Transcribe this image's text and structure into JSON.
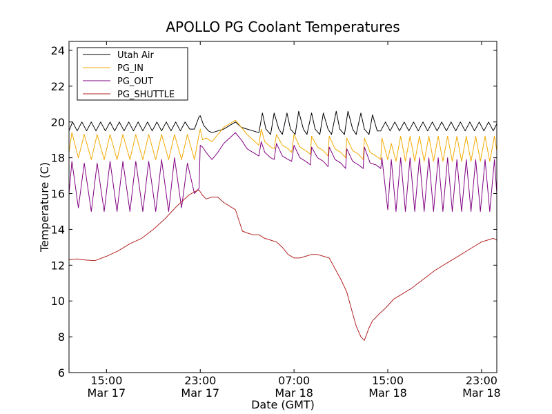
{
  "chart_data": {
    "type": "line",
    "title": "APOLLO PG Coolant Temperatures",
    "xlabel": "Date (GMT)",
    "ylabel": "Temperature (C)",
    "ylim": [
      6,
      24.5
    ],
    "xlim_hours": [
      11.8,
      48.3
    ],
    "x_unit": "hours since 2013-03-17 00:00 GMT",
    "yticks": [
      6,
      8,
      10,
      12,
      14,
      16,
      18,
      20,
      22,
      24
    ],
    "xticks": [
      {
        "hour": 15,
        "line1": "15:00",
        "line2": "Mar 17"
      },
      {
        "hour": 23,
        "line1": "23:00",
        "line2": "Mar 17"
      },
      {
        "hour": 31,
        "line1": "07:00",
        "line2": "Mar 18"
      },
      {
        "hour": 39,
        "line1": "15:00",
        "line2": "Mar 18"
      },
      {
        "hour": 47,
        "line1": "23:00",
        "line2": "Mar 18"
      }
    ],
    "legend_position": "top-left",
    "series": [
      {
        "name": "Utah Air",
        "color": "#000000",
        "x": [
          11.8,
          12.1,
          12.5,
          12.9,
          13.3,
          13.7,
          14.1,
          14.5,
          14.9,
          15.3,
          15.7,
          16.1,
          16.5,
          16.9,
          17.3,
          17.7,
          18.1,
          18.5,
          18.9,
          19.3,
          19.7,
          20.1,
          20.5,
          20.9,
          21.3,
          21.7,
          22.1,
          22.5,
          22.9,
          23.0,
          23.3,
          23.7,
          24.0,
          24.5,
          25.0,
          25.5,
          26.0,
          26.5,
          27.0,
          27.5,
          28.0,
          28.3,
          28.6,
          29.0,
          29.3,
          29.7,
          30.0,
          30.4,
          30.7,
          31.1,
          31.4,
          31.8,
          32.1,
          32.5,
          32.8,
          33.2,
          33.5,
          33.9,
          34.2,
          34.6,
          34.9,
          35.3,
          35.6,
          36.0,
          36.3,
          36.7,
          37.0,
          37.4,
          37.7,
          38.1,
          38.4,
          38.8,
          39.2,
          39.6,
          40.0,
          40.4,
          40.8,
          41.2,
          41.6,
          42.0,
          42.4,
          42.8,
          43.2,
          43.6,
          44.0,
          44.4,
          44.8,
          45.2,
          45.6,
          46.0,
          46.4,
          46.8,
          47.2,
          47.6,
          48.0,
          48.3
        ],
        "y": [
          19.5,
          20.0,
          19.5,
          20.0,
          19.5,
          20.0,
          19.5,
          20.0,
          19.5,
          20.0,
          19.5,
          20.0,
          19.5,
          20.0,
          19.5,
          20.0,
          19.5,
          20.0,
          19.5,
          20.0,
          19.5,
          20.0,
          19.5,
          20.0,
          19.5,
          20.0,
          19.6,
          19.6,
          20.3,
          20.35,
          19.8,
          19.5,
          19.4,
          19.5,
          19.6,
          19.8,
          20.0,
          19.7,
          19.6,
          19.5,
          19.4,
          20.5,
          19.6,
          19.3,
          20.5,
          19.6,
          19.3,
          20.5,
          19.6,
          19.3,
          20.6,
          19.6,
          19.3,
          20.5,
          19.6,
          19.3,
          20.5,
          19.6,
          19.3,
          20.6,
          19.6,
          19.3,
          20.6,
          19.6,
          19.3,
          20.5,
          19.6,
          19.3,
          20.4,
          19.5,
          19.5,
          20.0,
          19.5,
          20.0,
          19.5,
          20.0,
          19.5,
          20.0,
          19.5,
          20.0,
          19.5,
          20.0,
          19.5,
          20.0,
          19.5,
          20.0,
          19.5,
          20.0,
          19.5,
          20.0,
          19.5,
          20.0,
          19.5,
          20.0,
          19.5,
          19.9
        ]
      },
      {
        "name": "PG_IN",
        "color": "#f2a900",
        "x": [
          11.8,
          12.05,
          12.6,
          13.1,
          13.7,
          14.2,
          14.8,
          15.3,
          15.9,
          16.4,
          17.0,
          17.5,
          18.1,
          18.6,
          19.2,
          19.7,
          20.3,
          20.8,
          21.4,
          21.9,
          22.5,
          22.9,
          23.0,
          23.2,
          23.5,
          24.0,
          24.5,
          25.0,
          25.5,
          26.0,
          26.5,
          27.0,
          27.5,
          28.0,
          28.2,
          28.5,
          29.0,
          29.3,
          29.5,
          30.0,
          30.5,
          30.8,
          31.0,
          31.5,
          32.0,
          32.4,
          32.5,
          33.0,
          33.5,
          33.9,
          34.0,
          34.5,
          35.0,
          35.4,
          35.5,
          36.0,
          36.5,
          36.9,
          37.0,
          37.5,
          38.0,
          38.4,
          38.5,
          39.0,
          39.3,
          39.7,
          40.1,
          40.5,
          40.9,
          41.3,
          41.7,
          42.1,
          42.5,
          42.9,
          43.3,
          43.7,
          44.1,
          44.5,
          44.9,
          45.3,
          45.7,
          46.1,
          46.5,
          46.9,
          47.3,
          47.7,
          48.1,
          48.3
        ],
        "y": [
          18.3,
          19.4,
          18.0,
          19.3,
          17.9,
          19.3,
          17.9,
          19.3,
          17.9,
          19.3,
          17.9,
          19.3,
          17.9,
          19.3,
          17.9,
          19.3,
          17.9,
          19.3,
          17.9,
          19.3,
          17.9,
          19.3,
          19.6,
          19.0,
          19.1,
          18.9,
          19.3,
          19.7,
          19.9,
          20.1,
          19.7,
          19.3,
          19.0,
          18.7,
          19.6,
          18.9,
          18.6,
          18.5,
          19.3,
          18.7,
          18.5,
          18.3,
          19.3,
          18.6,
          18.4,
          18.2,
          19.2,
          18.6,
          18.4,
          18.1,
          19.2,
          18.5,
          18.3,
          18.0,
          19.1,
          18.4,
          18.2,
          17.9,
          19.1,
          18.3,
          18.1,
          17.9,
          19.1,
          17.9,
          18.8,
          17.8,
          19.2,
          17.8,
          19.2,
          17.8,
          19.2,
          17.8,
          19.2,
          17.8,
          19.2,
          17.8,
          19.2,
          17.8,
          19.2,
          17.8,
          19.2,
          17.8,
          19.2,
          17.8,
          19.2,
          17.8,
          19.2,
          18.4
        ]
      },
      {
        "name": "PG_OUT",
        "color": "#800080",
        "x": [
          11.8,
          12.05,
          12.6,
          13.1,
          13.7,
          14.2,
          14.8,
          15.3,
          15.9,
          16.4,
          17.0,
          17.5,
          18.1,
          18.6,
          19.2,
          19.7,
          20.3,
          20.8,
          21.4,
          21.9,
          22.5,
          22.9,
          23.0,
          23.2,
          23.5,
          24.0,
          24.5,
          25.0,
          25.5,
          26.0,
          26.5,
          27.0,
          27.5,
          28.0,
          28.2,
          28.5,
          29.0,
          29.3,
          29.5,
          30.0,
          30.5,
          30.8,
          31.0,
          31.5,
          32.0,
          32.4,
          32.5,
          33.0,
          33.5,
          33.9,
          34.0,
          34.5,
          35.0,
          35.4,
          35.5,
          36.0,
          36.5,
          36.9,
          37.0,
          37.5,
          38.0,
          38.4,
          38.5,
          39.0,
          39.3,
          39.7,
          40.1,
          40.5,
          40.9,
          41.3,
          41.7,
          42.1,
          42.5,
          42.9,
          43.3,
          43.7,
          44.1,
          44.5,
          44.9,
          45.3,
          45.7,
          46.1,
          46.5,
          46.9,
          47.3,
          47.7,
          48.1,
          48.3
        ],
        "y": [
          16.0,
          17.8,
          15.2,
          17.7,
          15.0,
          17.7,
          15.0,
          17.8,
          15.0,
          17.8,
          15.0,
          17.8,
          15.0,
          17.8,
          15.0,
          17.9,
          15.0,
          18.0,
          15.2,
          17.7,
          16.0,
          16.3,
          18.7,
          18.6,
          18.3,
          17.9,
          18.3,
          18.8,
          19.1,
          19.4,
          19.0,
          18.5,
          18.3,
          18.1,
          18.9,
          18.3,
          18.0,
          17.9,
          18.8,
          18.1,
          17.9,
          17.8,
          18.7,
          18.0,
          17.8,
          17.6,
          18.6,
          18.0,
          17.8,
          17.5,
          18.6,
          17.9,
          17.7,
          17.4,
          18.5,
          17.8,
          17.6,
          17.4,
          18.6,
          17.7,
          17.6,
          17.4,
          18.0,
          15.1,
          17.9,
          15.0,
          18.0,
          15.0,
          18.0,
          15.0,
          18.0,
          15.0,
          18.0,
          15.0,
          18.0,
          15.0,
          18.0,
          15.0,
          17.9,
          15.0,
          17.9,
          15.0,
          17.9,
          15.0,
          17.9,
          15.0,
          17.9,
          16.0
        ]
      },
      {
        "name": "PG_SHUTTLE",
        "color": "#b22222",
        "x": [
          11.8,
          12.5,
          13.0,
          14.0,
          15.0,
          16.0,
          17.0,
          18.0,
          19.0,
          20.0,
          21.0,
          22.0,
          22.5,
          22.9,
          23.2,
          23.5,
          24.0,
          24.5,
          25.0,
          25.5,
          26.0,
          26.3,
          26.6,
          27.0,
          27.5,
          28.0,
          28.5,
          29.0,
          29.5,
          30.0,
          30.5,
          31.0,
          31.5,
          32.0,
          32.5,
          33.0,
          33.5,
          34.0,
          34.5,
          35.0,
          35.5,
          36.0,
          36.3,
          36.7,
          37.0,
          37.4,
          37.7,
          38.0,
          38.3,
          38.8,
          39.5,
          40.0,
          41.0,
          42.0,
          43.0,
          44.0,
          45.0,
          46.0,
          47.0,
          48.0,
          48.3
        ],
        "y": [
          12.3,
          12.35,
          12.3,
          12.25,
          12.5,
          12.8,
          13.2,
          13.5,
          14.0,
          14.6,
          15.3,
          15.9,
          16.1,
          16.2,
          15.9,
          15.7,
          15.8,
          15.8,
          15.5,
          15.3,
          15.1,
          14.5,
          13.9,
          13.8,
          13.7,
          13.7,
          13.5,
          13.4,
          13.3,
          13.0,
          12.6,
          12.4,
          12.4,
          12.5,
          12.6,
          12.6,
          12.5,
          12.4,
          11.8,
          11.2,
          10.5,
          9.3,
          8.6,
          8.0,
          7.8,
          8.5,
          8.9,
          9.1,
          9.3,
          9.6,
          10.1,
          10.3,
          10.7,
          11.2,
          11.7,
          12.1,
          12.5,
          12.9,
          13.3,
          13.5,
          13.4
        ]
      }
    ]
  }
}
